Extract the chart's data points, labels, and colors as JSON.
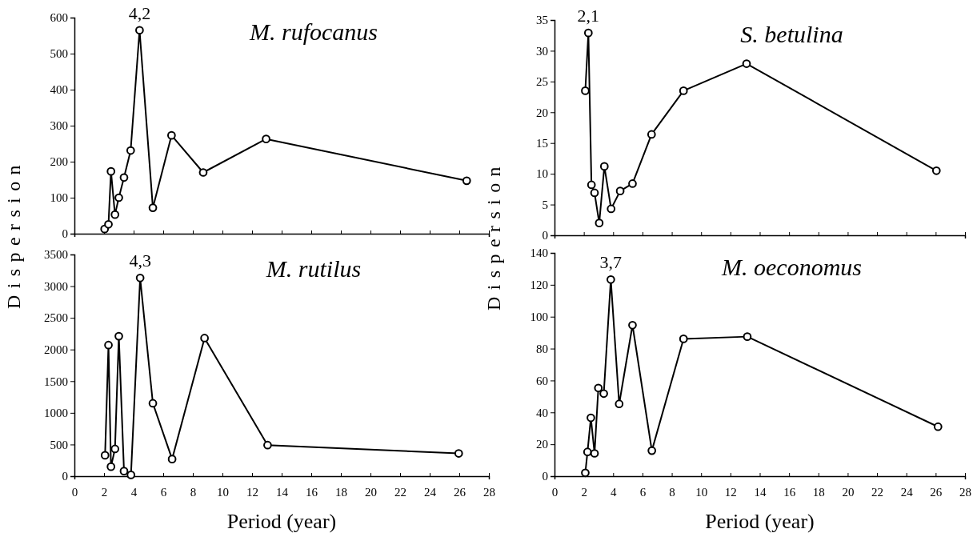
{
  "chart_data": [
    {
      "type": "line",
      "title": "M. rufocanus",
      "ylabel": "Dispersion",
      "xlim": [
        0,
        28
      ],
      "xticks": [
        0,
        2,
        4,
        6,
        8,
        10,
        12,
        14,
        16,
        18,
        20,
        22,
        24,
        26,
        28
      ],
      "ylim": [
        0,
        600
      ],
      "yticks": [
        0,
        100,
        200,
        300,
        400,
        500,
        600
      ],
      "tick_labels": "y",
      "marker": "circle",
      "line_style": "solid",
      "grid": false,
      "annotations": [
        {
          "text": "4,2",
          "x": 4.4,
          "y": 565
        }
      ],
      "series": [
        {
          "color": "#000000",
          "x": [
            2.04,
            2.3,
            2.47,
            2.74,
            3.0,
            3.35,
            3.8,
            4.4,
            5.3,
            6.56,
            8.7,
            12.95,
            26.5
          ],
          "values": [
            13,
            26,
            173,
            53,
            100,
            156,
            231,
            565,
            72,
            273,
            170,
            263,
            147
          ]
        }
      ]
    },
    {
      "type": "line",
      "title": "S. betulina",
      "ylabel": "Dispersion",
      "xlim": [
        0,
        28
      ],
      "xticks": [
        0,
        2,
        4,
        6,
        8,
        10,
        12,
        14,
        16,
        18,
        20,
        22,
        24,
        26,
        28
      ],
      "ylim": [
        0,
        35
      ],
      "yticks": [
        0,
        5,
        10,
        15,
        20,
        25,
        30,
        35
      ],
      "tick_labels": "y",
      "marker": "circle",
      "line_style": "solid",
      "grid": false,
      "annotations": [
        {
          "text": "2,1",
          "x": 2.31,
          "y": 32.9
        }
      ],
      "series": [
        {
          "color": "#000000",
          "x": [
            2.1,
            2.31,
            2.52,
            2.73,
            3.05,
            3.4,
            3.86,
            4.48,
            5.32,
            6.62,
            8.8,
            13.1,
            26.05
          ],
          "values": [
            23.5,
            32.9,
            8.2,
            6.9,
            2.0,
            11.2,
            4.3,
            7.2,
            8.4,
            16.4,
            23.5,
            27.9,
            10.5
          ]
        }
      ]
    },
    {
      "type": "line",
      "title": "M. rutilus",
      "xlabel": "Period (year)",
      "xlim": [
        0,
        28
      ],
      "xticks": [
        0,
        2,
        4,
        6,
        8,
        10,
        12,
        14,
        16,
        18,
        20,
        22,
        24,
        26,
        28
      ],
      "ylim": [
        0,
        3500
      ],
      "yticks": [
        0,
        500,
        1000,
        1500,
        2000,
        2500,
        3000,
        3500
      ],
      "marker": "circle",
      "line_style": "solid",
      "grid": false,
      "annotations": [
        {
          "text": "4,3",
          "x": 4.44,
          "y": 3128
        }
      ],
      "series": [
        {
          "color": "#000000",
          "x": [
            2.07,
            2.3,
            2.47,
            2.74,
            3.0,
            3.35,
            3.82,
            4.44,
            5.3,
            6.6,
            8.79,
            13.05,
            25.96
          ],
          "values": [
            330,
            2070,
            150,
            430,
            2210,
            80,
            20,
            3130,
            1150,
            270,
            2180,
            490,
            360
          ]
        }
      ]
    },
    {
      "type": "line",
      "title": "M. oeconomus",
      "xlabel": "Period (year)",
      "xlim": [
        0,
        28
      ],
      "xticks": [
        0,
        2,
        4,
        6,
        8,
        10,
        12,
        14,
        16,
        18,
        20,
        22,
        24,
        26,
        28
      ],
      "ylim": [
        0,
        140
      ],
      "yticks": [
        0,
        20,
        40,
        60,
        80,
        100,
        120,
        140
      ],
      "marker": "circle",
      "line_style": "solid",
      "grid": false,
      "annotations": [
        {
          "text": "3,7",
          "x": 3.84,
          "y": 123.3
        }
      ],
      "series": [
        {
          "color": "#000000",
          "x": [
            2.1,
            2.25,
            2.48,
            2.73,
            2.99,
            3.36,
            3.84,
            4.41,
            5.32,
            6.64,
            8.8,
            13.15,
            26.16
          ],
          "values": [
            2.1,
            15.2,
            36.6,
            14.3,
            55.3,
            51.8,
            123.3,
            45.3,
            94.7,
            16.0,
            86.1,
            87.5,
            31.0
          ]
        }
      ]
    }
  ]
}
